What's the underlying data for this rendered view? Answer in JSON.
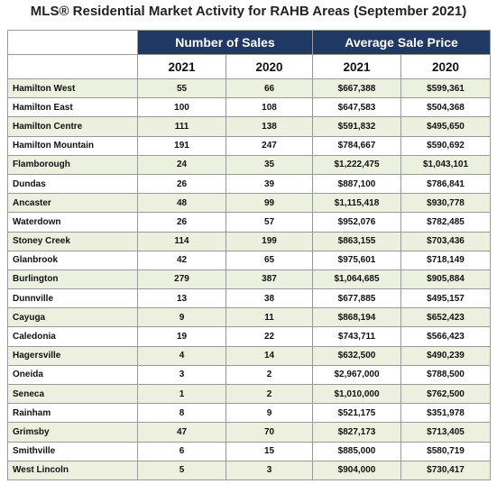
{
  "header": {
    "title": "MLS® Residential Market Activity for RAHB Areas (September 2021)"
  },
  "table": {
    "groups": [
      "Number of Sales",
      "Average Sale Price"
    ],
    "years": [
      "2021",
      "2020",
      "2021",
      "2020"
    ],
    "rows": [
      [
        "Hamilton West",
        55,
        66,
        "$667,388",
        "$599,361"
      ],
      [
        "Hamilton East",
        100,
        108,
        "$647,583",
        "$504,368"
      ],
      [
        "Hamilton Centre",
        111,
        138,
        "$591,832",
        "$495,650"
      ],
      [
        "Hamilton Mountain",
        191,
        247,
        "$784,667",
        "$590,692"
      ],
      [
        "Flamborough",
        24,
        35,
        "$1,222,475",
        "$1,043,101"
      ],
      [
        "Dundas",
        26,
        39,
        "$887,100",
        "$786,841"
      ],
      [
        "Ancaster",
        48,
        99,
        "$1,115,418",
        "$930,778"
      ],
      [
        "Waterdown",
        26,
        57,
        "$952,076",
        "$782,485"
      ],
      [
        "Stoney Creek",
        114,
        199,
        "$863,155",
        "$703,436"
      ],
      [
        "Glanbrook",
        42,
        65,
        "$975,601",
        "$718,149"
      ],
      [
        "Burlington",
        279,
        387,
        "$1,064,685",
        "$905,884"
      ],
      [
        "Dunnville",
        13,
        38,
        "$677,885",
        "$495,157"
      ],
      [
        "Cayuga",
        9,
        11,
        "$868,194",
        "$652,423"
      ],
      [
        "Caledonia",
        19,
        22,
        "$743,711",
        "$566,423"
      ],
      [
        "Hagersville",
        4,
        14,
        "$632,500",
        "$490,239"
      ],
      [
        "Oneida",
        3,
        2,
        "$2,967,000",
        "$788,500"
      ],
      [
        "Seneca",
        1,
        2,
        "$1,010,000",
        "$762,500"
      ],
      [
        "Rainham",
        8,
        9,
        "$521,175",
        "$351,978"
      ],
      [
        "Grimsby",
        47,
        70,
        "$827,173",
        "$713,405"
      ],
      [
        "Smithville",
        6,
        15,
        "$885,000",
        "$580,719"
      ],
      [
        "West Lincoln",
        5,
        3,
        "$904,000",
        "$730,417"
      ]
    ]
  }
}
